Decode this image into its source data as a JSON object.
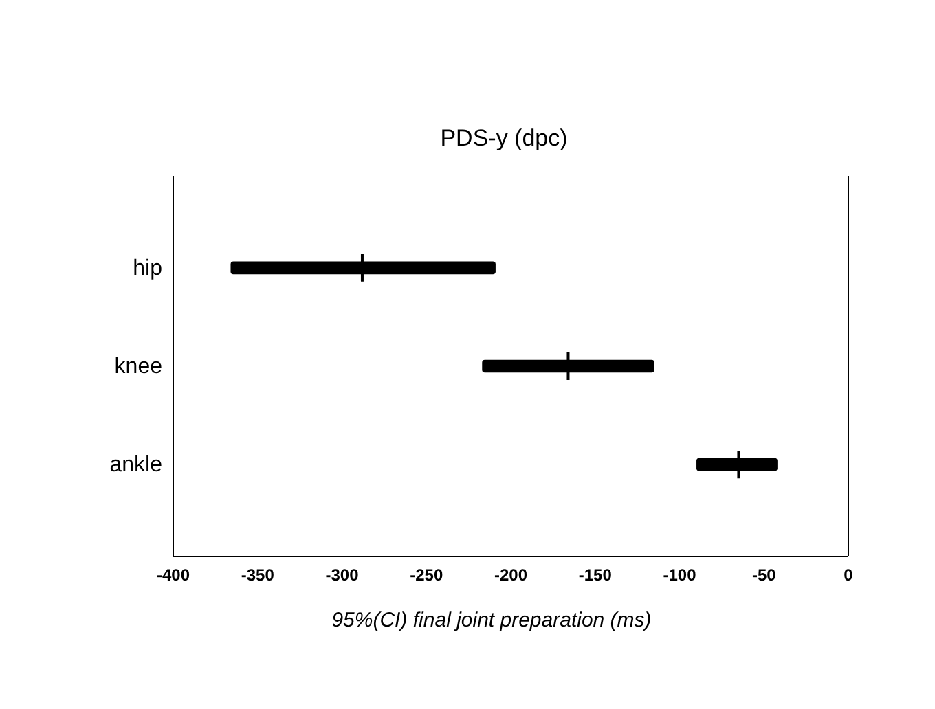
{
  "chart_data": {
    "type": "bar",
    "orientation": "horizontal",
    "title": "PDS-y (dpc)",
    "xlabel": "95%(CI) final joint preparation (ms)",
    "categories": [
      "hip",
      "knee",
      "ankle"
    ],
    "series": [
      {
        "type": "bar",
        "color": "#000000",
        "base": [
          -366,
          -217,
          -90
        ],
        "values": [
          157,
          102,
          48
        ]
      },
      {
        "type": "scatter",
        "color": "#000000",
        "marker": "cross",
        "values": [
          -288,
          -166,
          -65
        ]
      }
    ],
    "xlim": [
      -400,
      0
    ],
    "xticks": [
      -400,
      -350,
      -300,
      -250,
      -200,
      -150,
      -100,
      -50,
      0
    ],
    "grid": false
  }
}
